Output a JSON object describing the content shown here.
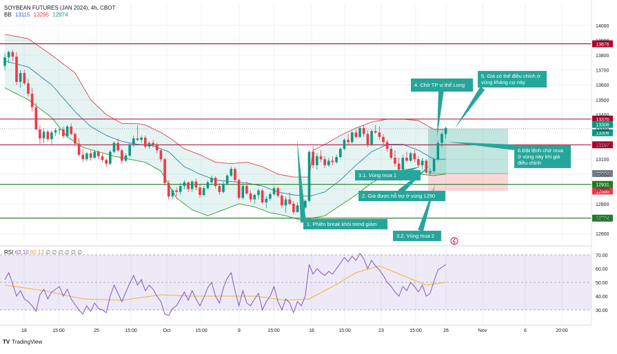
{
  "header": {
    "symbol": "SOYBEAN FUTURES (JAN 2024), 4h, CBOT",
    "indicator_label": "BB",
    "indicator_values": [
      "13115",
      "13295",
      "12974"
    ],
    "indicator_colors": [
      "#2962ff",
      "#f23645",
      "#089981"
    ]
  },
  "rsi_header": {
    "label": "RSI",
    "values": [
      "63.10",
      "60.13",
      "∅",
      "∅",
      "∅",
      "∅",
      "∅",
      "∅"
    ]
  },
  "brand": {
    "name": "TradingView",
    "logo": "TV"
  },
  "colors": {
    "up": "#089981",
    "down": "#f23645",
    "grid": "#eef0f3",
    "resistance": "#b2002a",
    "support": "#1e7d22",
    "bb_upper": "#e0404f",
    "bb_basis": "#2f7fa3",
    "bb_lower": "#2a9d2a",
    "bb_fill": "rgba(38,166,154,0.12)",
    "rsi": "#7e57c2",
    "rsi_ma": "#f0b528",
    "rsi_band": "rgba(126,87,194,0.13)",
    "tp_zone": "rgba(8,153,129,0.25)",
    "sl_zone": "rgba(242,54,69,0.2)",
    "note_bg": "#26a69a"
  },
  "chart_data": {
    "type": "candlestick",
    "price_axis": {
      "ylim": [
        12550,
        14050
      ],
      "ticks": [
        12600,
        12700,
        12800,
        12900,
        13000,
        13100,
        13200,
        13300,
        13400,
        13500,
        13600,
        13700,
        13800,
        13900,
        14000
      ]
    },
    "time_axis": {
      "labels": [
        "18",
        "15:00",
        "25",
        "15:00",
        "Oct",
        "15:00",
        "9",
        "15:00",
        "16",
        "15:00",
        "23",
        "15:00",
        "26",
        "Nov",
        "6",
        "20:00"
      ]
    },
    "horizontal_levels": [
      {
        "value": 13876,
        "label": "13876",
        "kind": "resistance"
      },
      {
        "value": 13370,
        "label": "13370",
        "kind": "resistance"
      },
      {
        "value": 13197,
        "label": "13197",
        "kind": "resistance"
      },
      {
        "value": 12931,
        "label": "12931",
        "kind": "support"
      },
      {
        "value": 12704,
        "label": "12704",
        "kind": "support"
      }
    ],
    "price_tags": [
      {
        "value": 13306,
        "label": "13306",
        "style": "green"
      },
      {
        "value": 13306,
        "label": "13306",
        "style": "green"
      },
      {
        "value": 13004,
        "label": "13004",
        "style": "grey"
      },
      {
        "value": 12886,
        "label": "12886",
        "style": "red"
      }
    ],
    "candles": [
      [
        13728,
        13812,
        13700,
        13785
      ],
      [
        13785,
        13830,
        13745,
        13820
      ],
      [
        13820,
        13835,
        13760,
        13790
      ],
      [
        13790,
        13820,
        13600,
        13620
      ],
      [
        13620,
        13700,
        13580,
        13680
      ],
      [
        13680,
        13700,
        13600,
        13610
      ],
      [
        13610,
        13640,
        13520,
        13540
      ],
      [
        13540,
        13580,
        13420,
        13450
      ],
      [
        13450,
        13480,
        13300,
        13300
      ],
      [
        13300,
        13330,
        13200,
        13240
      ],
      [
        13240,
        13310,
        13210,
        13285
      ],
      [
        13285,
        13300,
        13220,
        13235
      ],
      [
        13235,
        13295,
        13200,
        13280
      ],
      [
        13280,
        13310,
        13255,
        13295
      ],
      [
        13295,
        13310,
        13265,
        13300
      ],
      [
        13300,
        13320,
        13240,
        13255
      ],
      [
        13255,
        13330,
        13250,
        13320
      ],
      [
        13320,
        13340,
        13260,
        13270
      ],
      [
        13270,
        13280,
        13190,
        13205
      ],
      [
        13205,
        13240,
        13120,
        13130
      ],
      [
        13130,
        13170,
        13080,
        13100
      ],
      [
        13100,
        13150,
        13085,
        13140
      ],
      [
        13140,
        13160,
        13090,
        13110
      ],
      [
        13110,
        13160,
        13100,
        13150
      ],
      [
        13150,
        13160,
        13100,
        13120
      ],
      [
        13120,
        13140,
        13080,
        13095
      ],
      [
        13095,
        13110,
        13050,
        13070
      ],
      [
        13070,
        13160,
        13060,
        13150
      ],
      [
        13150,
        13220,
        13140,
        13210
      ],
      [
        13210,
        13240,
        13150,
        13160
      ],
      [
        13160,
        13170,
        13070,
        13090
      ],
      [
        13090,
        13140,
        13080,
        13125
      ],
      [
        13125,
        13210,
        13115,
        13200
      ],
      [
        13200,
        13260,
        13180,
        13240
      ],
      [
        13240,
        13330,
        13220,
        13230
      ],
      [
        13230,
        13260,
        13210,
        13245
      ],
      [
        13245,
        13260,
        13170,
        13185
      ],
      [
        13185,
        13220,
        13170,
        13210
      ],
      [
        13210,
        13230,
        13180,
        13200
      ],
      [
        13200,
        13210,
        13140,
        13160
      ],
      [
        13160,
        13170,
        13080,
        13100
      ],
      [
        13100,
        13110,
        12920,
        12940
      ],
      [
        12940,
        12960,
        12830,
        12850
      ],
      [
        12850,
        12900,
        12830,
        12890
      ],
      [
        12890,
        12910,
        12850,
        12880
      ],
      [
        12880,
        12940,
        12860,
        12920
      ],
      [
        12920,
        12960,
        12900,
        12945
      ],
      [
        12945,
        12950,
        12880,
        12900
      ],
      [
        12900,
        12960,
        12880,
        12950
      ],
      [
        12950,
        12970,
        12890,
        12910
      ],
      [
        12910,
        12930,
        12840,
        12860
      ],
      [
        12860,
        12920,
        12850,
        12905
      ],
      [
        12905,
        12960,
        12895,
        12945
      ],
      [
        12945,
        12990,
        12930,
        12975
      ],
      [
        12975,
        12985,
        12905,
        12920
      ],
      [
        12920,
        12940,
        12860,
        12880
      ],
      [
        12880,
        12950,
        12870,
        12935
      ],
      [
        12935,
        13000,
        12925,
        12990
      ],
      [
        12990,
        13050,
        12980,
        13035
      ],
      [
        13035,
        13045,
        12945,
        12960
      ],
      [
        12960,
        12970,
        12830,
        12840
      ],
      [
        12840,
        12940,
        12830,
        12920
      ],
      [
        12920,
        12950,
        12860,
        12870
      ],
      [
        12870,
        12890,
        12810,
        12830
      ],
      [
        12830,
        12870,
        12800,
        12860
      ],
      [
        12860,
        12900,
        12830,
        12890
      ],
      [
        12890,
        12900,
        12800,
        12810
      ],
      [
        12810,
        12850,
        12770,
        12835
      ],
      [
        12835,
        12880,
        12820,
        12865
      ],
      [
        12865,
        12920,
        12855,
        12905
      ],
      [
        12905,
        12915,
        12840,
        12855
      ],
      [
        12855,
        12870,
        12770,
        12790
      ],
      [
        12790,
        12850,
        12740,
        12830
      ],
      [
        12830,
        12880,
        12790,
        12800
      ],
      [
        12800,
        12820,
        12730,
        12745
      ],
      [
        12745,
        12810,
        12740,
        12790
      ],
      [
        12790,
        12810,
        12760,
        12775
      ],
      [
        12775,
        12830,
        12765,
        12820
      ],
      [
        12820,
        13160,
        12810,
        13150
      ],
      [
        13150,
        13190,
        13040,
        13060
      ],
      [
        13060,
        13140,
        13030,
        13120
      ],
      [
        13120,
        13160,
        13080,
        13100
      ],
      [
        13100,
        13120,
        13040,
        13060
      ],
      [
        13060,
        13110,
        13050,
        13090
      ],
      [
        13090,
        13120,
        13060,
        13080
      ],
      [
        13080,
        13130,
        13070,
        13115
      ],
      [
        13115,
        13180,
        13105,
        13170
      ],
      [
        13170,
        13240,
        13160,
        13230
      ],
      [
        13230,
        13270,
        13200,
        13215
      ],
      [
        13215,
        13290,
        13205,
        13280
      ],
      [
        13280,
        13300,
        13240,
        13250
      ],
      [
        13250,
        13320,
        13240,
        13310
      ],
      [
        13310,
        13330,
        13250,
        13270
      ],
      [
        13270,
        13295,
        13180,
        13200
      ],
      [
        13200,
        13300,
        13190,
        13290
      ],
      [
        13290,
        13330,
        13270,
        13280
      ],
      [
        13280,
        13320,
        13230,
        13250
      ],
      [
        13250,
        13270,
        13200,
        13215
      ],
      [
        13215,
        13230,
        13150,
        13170
      ],
      [
        13170,
        13190,
        13100,
        13110
      ],
      [
        13110,
        13160,
        13050,
        13070
      ],
      [
        13070,
        13110,
        13020,
        13030
      ],
      [
        13030,
        13130,
        13020,
        13110
      ],
      [
        13110,
        13150,
        13080,
        13090
      ],
      [
        13090,
        13150,
        13080,
        13140
      ],
      [
        13140,
        13160,
        13080,
        13100
      ],
      [
        13100,
        13120,
        13040,
        13060
      ],
      [
        13060,
        13110,
        13030,
        13090
      ],
      [
        13090,
        13100,
        13000,
        13010
      ],
      [
        13010,
        13040,
        12990,
        13020
      ],
      [
        13020,
        13110,
        13010,
        13100
      ],
      [
        13100,
        13230,
        13090,
        13210
      ],
      [
        13210,
        13280,
        13180,
        13270
      ],
      [
        13270,
        13320,
        13240,
        13310
      ]
    ],
    "bollinger": {
      "upper": [
        [
          0,
          13940
        ],
        [
          6,
          13910
        ],
        [
          12,
          13800
        ],
        [
          18,
          13680
        ],
        [
          22,
          13500
        ],
        [
          26,
          13400
        ],
        [
          30,
          13340
        ],
        [
          34,
          13340
        ],
        [
          36,
          13330
        ],
        [
          40,
          13280
        ],
        [
          43,
          13230
        ],
        [
          46,
          13170
        ],
        [
          50,
          13130
        ],
        [
          54,
          13080
        ],
        [
          58,
          13070
        ],
        [
          62,
          13080
        ],
        [
          66,
          13050
        ],
        [
          70,
          13000
        ],
        [
          74,
          12980
        ],
        [
          78,
          12980
        ],
        [
          79,
          13160
        ],
        [
          82,
          13200
        ],
        [
          86,
          13260
        ],
        [
          90,
          13310
        ],
        [
          94,
          13350
        ],
        [
          98,
          13370
        ],
        [
          102,
          13370
        ],
        [
          106,
          13360
        ],
        [
          110,
          13300
        ],
        [
          113,
          13300
        ],
        [
          115,
          13330
        ]
      ],
      "basis": [
        [
          0,
          13760
        ],
        [
          6,
          13720
        ],
        [
          12,
          13600
        ],
        [
          18,
          13420
        ],
        [
          22,
          13320
        ],
        [
          26,
          13260
        ],
        [
          30,
          13220
        ],
        [
          34,
          13200
        ],
        [
          38,
          13190
        ],
        [
          42,
          13150
        ],
        [
          46,
          13050
        ],
        [
          50,
          13000
        ],
        [
          54,
          12960
        ],
        [
          58,
          12950
        ],
        [
          62,
          12940
        ],
        [
          66,
          12920
        ],
        [
          70,
          12880
        ],
        [
          74,
          12860
        ],
        [
          78,
          12850
        ],
        [
          82,
          12880
        ],
        [
          86,
          12960
        ],
        [
          90,
          13060
        ],
        [
          94,
          13150
        ],
        [
          98,
          13200
        ],
        [
          102,
          13200
        ],
        [
          106,
          13160
        ],
        [
          110,
          13100
        ],
        [
          113,
          13100
        ],
        [
          115,
          13120
        ]
      ],
      "lower": [
        [
          0,
          13580
        ],
        [
          6,
          13500
        ],
        [
          12,
          13380
        ],
        [
          16,
          13250
        ],
        [
          20,
          13180
        ],
        [
          24,
          13150
        ],
        [
          28,
          13120
        ],
        [
          32,
          13100
        ],
        [
          36,
          13080
        ],
        [
          40,
          13020
        ],
        [
          44,
          12840
        ],
        [
          48,
          12760
        ],
        [
          52,
          12720
        ],
        [
          56,
          12760
        ],
        [
          60,
          12800
        ],
        [
          64,
          12780
        ],
        [
          68,
          12740
        ],
        [
          72,
          12720
        ],
        [
          76,
          12690
        ],
        [
          78,
          12700
        ],
        [
          82,
          12720
        ],
        [
          86,
          12790
        ],
        [
          90,
          12860
        ],
        [
          94,
          12940
        ],
        [
          98,
          13000
        ],
        [
          102,
          13000
        ],
        [
          106,
          13000
        ],
        [
          110,
          12990
        ],
        [
          113,
          13000
        ],
        [
          115,
          12980
        ]
      ]
    },
    "rsi": {
      "ylim": [
        20,
        75
      ],
      "ticks": [
        30,
        40,
        50,
        60,
        70
      ],
      "bands": {
        "lower": 30,
        "upper": 70
      },
      "values": [
        52,
        57,
        49,
        40,
        44,
        38,
        36,
        33,
        29,
        41,
        45,
        38,
        43,
        45,
        47,
        40,
        45,
        38,
        34,
        30,
        27,
        33,
        29,
        35,
        31,
        30,
        28,
        40,
        48,
        42,
        36,
        43,
        49,
        55,
        48,
        52,
        44,
        48,
        45,
        40,
        36,
        27,
        26,
        31,
        33,
        38,
        43,
        37,
        44,
        38,
        33,
        39,
        46,
        50,
        40,
        35,
        46,
        53,
        57,
        44,
        33,
        44,
        35,
        33,
        38,
        42,
        30,
        36,
        40,
        47,
        36,
        30,
        38,
        35,
        28,
        36,
        33,
        40,
        63,
        56,
        60,
        57,
        55,
        58,
        56,
        60,
        64,
        68,
        65,
        69,
        66,
        71,
        67,
        60,
        66,
        62,
        59,
        55,
        50,
        47,
        43,
        40,
        47,
        44,
        50,
        47,
        43,
        48,
        40,
        42,
        51,
        59,
        61,
        63
      ],
      "ma": [
        [
          0,
          48
        ],
        [
          10,
          44
        ],
        [
          20,
          38
        ],
        [
          30,
          37
        ],
        [
          40,
          41
        ],
        [
          48,
          40
        ],
        [
          56,
          40
        ],
        [
          64,
          40
        ],
        [
          72,
          37
        ],
        [
          78,
          38
        ],
        [
          84,
          47
        ],
        [
          90,
          57
        ],
        [
          96,
          62
        ],
        [
          102,
          55
        ],
        [
          108,
          48
        ],
        [
          113,
          50
        ],
        [
          115,
          51
        ]
      ]
    },
    "annotations": [
      {
        "text": "1. Phiên break khỏi trend giảm"
      },
      {
        "text": "2. Giá được hỗ trợ ở vùng 1290"
      },
      {
        "text": "3.1. Vùng mua 1"
      },
      {
        "text": "3.2. Vùng mua 2"
      },
      {
        "text": "4. Chờ TP vị thế Long"
      },
      {
        "text": "5. Giá có thể điều chỉnh ở vùng kháng cự này"
      },
      {
        "text": "6.Đặt lệnh chờ mua ở vùng này khi giá điều chỉnh"
      }
    ],
    "trade_zone": {
      "entry": 13004,
      "target": 13306,
      "stop": 12886
    }
  }
}
